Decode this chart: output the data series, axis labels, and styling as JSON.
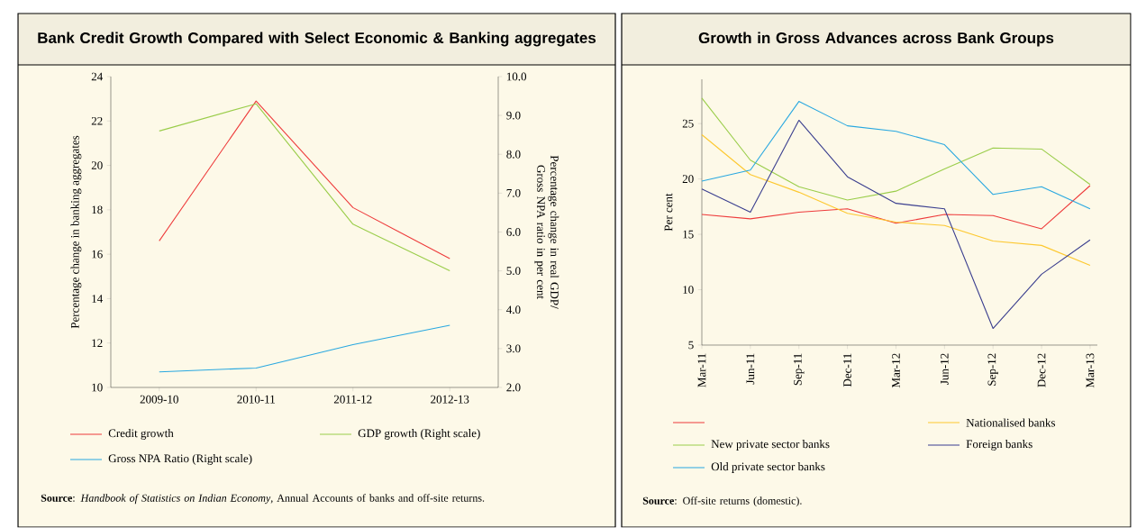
{
  "chart_data": [
    {
      "type": "line",
      "title": "Bank Credit Growth Compared with Select Economic & Banking aggregates",
      "ylabel": "Percentage change in banking aggregates",
      "y2label": "Percentage change in real GDP/ Gross NPA ratio in per cent",
      "categories": [
        "2009-10",
        "2010-11",
        "2011-12",
        "2012-13"
      ],
      "series": [
        {
          "name": "Credit growth",
          "color": "#ee3b3b",
          "values": [
            16.6,
            22.9,
            18.1,
            15.8
          ]
        },
        {
          "name": "GDP growth (Right scale)",
          "color": "#9acd4a",
          "axis": "y2",
          "values": [
            8.6,
            9.3,
            6.2,
            5.0
          ]
        },
        {
          "name": "Gross NPA Ratio (Right scale)",
          "color": "#29a8e0",
          "axis": "y2",
          "values": [
            2.4,
            2.5,
            3.1,
            3.6
          ]
        }
      ],
      "ylim": [
        10,
        24
      ],
      "yticks": [
        10,
        12,
        14,
        16,
        18,
        20,
        22,
        24
      ],
      "y2lim": [
        2,
        10
      ],
      "y2ticks": [
        {
          "value": 2,
          "label": "2.0"
        },
        {
          "value": 3,
          "label": "3.0"
        },
        {
          "value": 4,
          "label": "4.0"
        },
        {
          "value": 5,
          "label": "5.0"
        },
        {
          "value": 6,
          "label": "6.0"
        },
        {
          "value": 7,
          "label": "7.0"
        },
        {
          "value": 8,
          "label": "8.0"
        },
        {
          "value": 9,
          "label": "9.0"
        },
        {
          "value": 10,
          "label": "10.0"
        }
      ],
      "legend": "bottom",
      "marker": "none",
      "line_style": "solid",
      "annotations": [
        "**Source**: *Handbook of Statistics on Indian Economy*, Annual Accounts of banks and off-site returns."
      ]
    },
    {
      "type": "line",
      "title": "Growth in Gross Advances across Bank Groups",
      "ylabel": "Per cent",
      "categories": [
        "Mar-11",
        "Jun-11",
        "Sep-11",
        "Dec-11",
        "Mar-12",
        "Jun-12",
        "Sep-12",
        "Dec-12",
        "Mar-13"
      ],
      "series": [
        {
          "color": "#ee3b3b",
          "values": [
            16.8,
            16.4,
            17.0,
            17.3,
            16.0,
            16.8,
            16.7,
            15.5,
            19.4
          ]
        },
        {
          "name": "Nationalised banks",
          "color": "#fdc82f",
          "values": [
            24.0,
            20.4,
            18.8,
            16.9,
            16.1,
            15.8,
            14.4,
            14.0,
            12.2
          ]
        },
        {
          "name": "New private sector banks",
          "color": "#9acd4a",
          "values": [
            27.3,
            21.7,
            19.3,
            18.1,
            18.9,
            20.9,
            22.8,
            22.7,
            19.5
          ]
        },
        {
          "name": "Foreign banks",
          "color": "#3b3f8f",
          "values": [
            19.1,
            17.0,
            25.3,
            20.2,
            17.8,
            17.3,
            6.5,
            11.4,
            14.5
          ]
        },
        {
          "name": "Old private sector banks",
          "color": "#29a8e0",
          "values": [
            19.8,
            20.8,
            27.0,
            24.8,
            24.3,
            23.1,
            18.6,
            19.3,
            17.3
          ]
        }
      ],
      "ylim": [
        5,
        29
      ],
      "yticks": [
        5,
        10,
        15,
        20,
        25
      ],
      "legend": "bottom",
      "marker": "none",
      "line_style": "solid",
      "annotations": [
        "**Source**: Off-site returns (domestic)."
      ]
    }
  ]
}
